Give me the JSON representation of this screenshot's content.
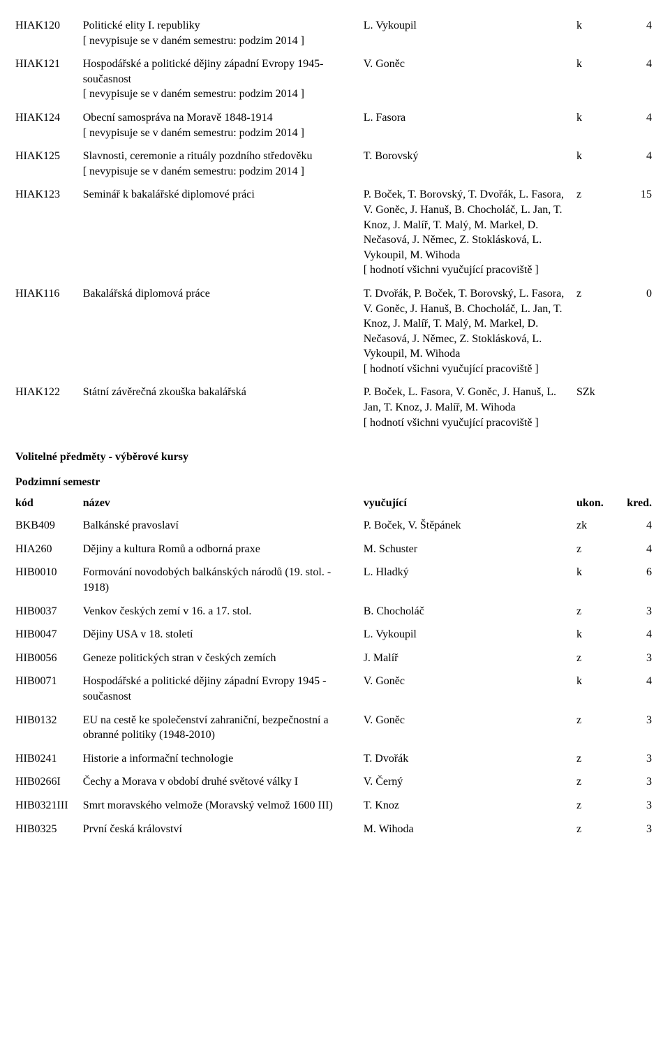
{
  "table1": {
    "rows": [
      {
        "code": "HIAK120",
        "name": "Politické elity I. republiky",
        "note": "[ nevypisuje se v daném semestru: podzim 2014 ]",
        "teacher": "L. Vykoupil",
        "tnote": "",
        "ukon": "k",
        "kred": "4"
      },
      {
        "code": "HIAK121",
        "name": "Hospodářské a politické dějiny západní Evropy 1945-současnost",
        "note": "[ nevypisuje se v daném semestru: podzim 2014 ]",
        "teacher": "V. Goněc",
        "tnote": "",
        "ukon": "k",
        "kred": "4"
      },
      {
        "code": "HIAK124",
        "name": "Obecní samospráva na Moravě 1848-1914",
        "note": "[ nevypisuje se v daném semestru: podzim 2014 ]",
        "teacher": "L. Fasora",
        "tnote": "",
        "ukon": "k",
        "kred": "4"
      },
      {
        "code": "HIAK125",
        "name": "Slavnosti, ceremonie a rituály pozdního středověku",
        "note": "[ nevypisuje se v daném semestru: podzim 2014 ]",
        "teacher": "T. Borovský",
        "tnote": "",
        "ukon": "k",
        "kred": "4"
      },
      {
        "code": "HIAK123",
        "name": "Seminář k bakalářské diplomové práci",
        "note": "",
        "teacher": "P. Boček, T. Borovský, T. Dvořák, L. Fasora, V. Goněc, J. Hanuš, B. Chocholáč, L. Jan, T. Knoz, J. Malíř, T. Malý, M. Markel, D. Nečasová, J. Němec, Z. Stoklásková, L. Vykoupil, M. Wihoda",
        "tnote": "[ hodnotí všichni vyučující pracoviště ]",
        "ukon": "z",
        "kred": "15"
      },
      {
        "code": "HIAK116",
        "name": "Bakalářská diplomová práce",
        "note": "",
        "teacher": "T. Dvořák, P. Boček, T. Borovský, L. Fasora, V. Goněc, J. Hanuš, B. Chocholáč, L. Jan, T. Knoz, J. Malíř, T. Malý, M. Markel, D. Nečasová, J. Němec, Z. Stoklásková, L. Vykoupil, M. Wihoda",
        "tnote": "[ hodnotí všichni vyučující pracoviště ]",
        "ukon": "z",
        "kred": "0"
      },
      {
        "code": "HIAK122",
        "name": "Státní závěrečná zkouška bakalářská",
        "note": "",
        "teacher": "P. Boček, L. Fasora, V. Goněc, J. Hanuš, L. Jan, T. Knoz, J. Malíř, M. Wihoda",
        "tnote": "[ hodnotí všichni vyučující pracoviště ]",
        "ukon": "SZk",
        "kred": ""
      }
    ]
  },
  "heading1": "Volitelné předměty - výběrové kursy",
  "heading2": "Podzimní semestr",
  "table2": {
    "headers": {
      "code": "kód",
      "name": "název",
      "teacher": "vyučující",
      "ukon": "ukon.",
      "kred": "kred."
    },
    "rows": [
      {
        "code": "BKB409",
        "name": "Balkánské pravoslaví",
        "teacher": "P. Boček, V. Štěpánek",
        "ukon": "zk",
        "kred": "4"
      },
      {
        "code": "HIA260",
        "name": "Dějiny a kultura Romů a odborná praxe",
        "teacher": "M. Schuster",
        "ukon": "z",
        "kred": "4"
      },
      {
        "code": "HIB0010",
        "name": "Formování novodobých balkánských národů (19. stol. - 1918)",
        "teacher": "L. Hladký",
        "ukon": "k",
        "kred": "6"
      },
      {
        "code": "HIB0037",
        "name": "Venkov českých zemí v 16. a 17. stol.",
        "teacher": "B. Chocholáč",
        "ukon": "z",
        "kred": "3"
      },
      {
        "code": "HIB0047",
        "name": "Dějiny USA v 18. století",
        "teacher": "L. Vykoupil",
        "ukon": "k",
        "kred": "4"
      },
      {
        "code": "HIB0056",
        "name": "Geneze politických stran v českých zemích",
        "teacher": "J. Malíř",
        "ukon": "z",
        "kred": "3"
      },
      {
        "code": "HIB0071",
        "name": "Hospodářské a politické dějiny západní Evropy 1945 - současnost",
        "teacher": "V. Goněc",
        "ukon": "k",
        "kred": "4"
      },
      {
        "code": "HIB0132",
        "name": "EU na cestě ke společenství zahraniční, bezpečnostní a obranné politiky (1948-2010)",
        "teacher": "V. Goněc",
        "ukon": "z",
        "kred": "3"
      },
      {
        "code": "HIB0241",
        "name": "Historie a informační technologie",
        "teacher": "T. Dvořák",
        "ukon": "z",
        "kred": "3"
      },
      {
        "code": "HIB0266I",
        "name": "Čechy a Morava v období druhé světové války I",
        "teacher": "V. Černý",
        "ukon": "z",
        "kred": "3"
      },
      {
        "code": "HIB0321III",
        "name": "Smrt moravského velmože (Moravský velmož 1600 III)",
        "teacher": "T. Knoz",
        "ukon": "z",
        "kred": "3"
      },
      {
        "code": "HIB0325",
        "name": "První česká království",
        "teacher": "M. Wihoda",
        "ukon": "z",
        "kred": "3"
      }
    ]
  }
}
